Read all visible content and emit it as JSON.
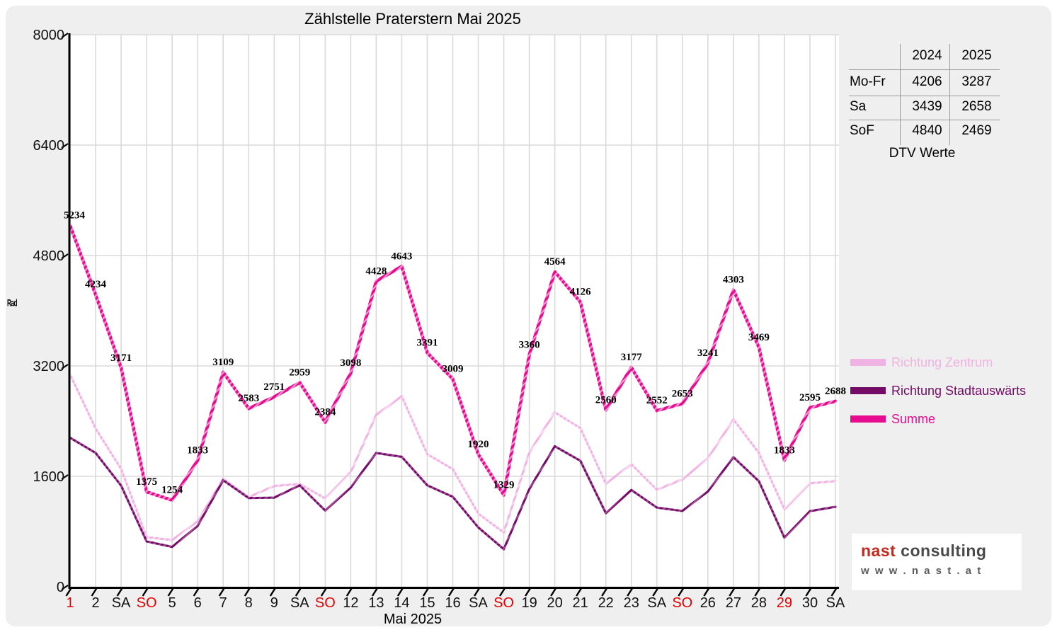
{
  "title": "Zählstelle Praterstern Mai 2025",
  "axes": {
    "y_title": "Rad",
    "x_title": "Mai 2025",
    "y_ticks": [
      0,
      1600,
      3200,
      4800,
      6400,
      8000
    ],
    "tick_color": "#111111",
    "weekend_holiday_color": "#e80000",
    "grid_color": "#dadada"
  },
  "table": {
    "col_headers": [
      "2024",
      "2025"
    ],
    "rows": [
      {
        "label": "Mo-Fr",
        "v2024": "4206",
        "v2025": "3287"
      },
      {
        "label": "Sa",
        "v2024": "3439",
        "v2025": "2658"
      },
      {
        "label": "SoF",
        "v2024": "4840",
        "v2025": "2469"
      }
    ],
    "caption": "DTV Werte"
  },
  "legend": {
    "items": [
      {
        "label": "Richtung Zentrum",
        "color": "#f0b2e2"
      },
      {
        "label": "Richtung Stadtauswärts",
        "color": "#740b66"
      },
      {
        "label": "Summe",
        "color": "#e60b8f"
      }
    ]
  },
  "logo": {
    "brand_red": "nast",
    "brand_rest": " consulting",
    "url_text": "w w w . n a s t . a t"
  },
  "chart_data": {
    "type": "line",
    "title": "Zählstelle Praterstern Mai 2025",
    "xlabel": "Mai 2025",
    "ylabel": "Rad",
    "ylim": [
      0,
      8000
    ],
    "grid": true,
    "legend_position": "right",
    "categories": [
      "1",
      "2",
      "SA",
      "SO",
      "5",
      "6",
      "7",
      "8",
      "9",
      "SA",
      "SO",
      "12",
      "13",
      "14",
      "15",
      "16",
      "SA",
      "SO",
      "19",
      "20",
      "21",
      "22",
      "23",
      "SA",
      "SO",
      "26",
      "27",
      "28",
      "29",
      "30",
      "SA"
    ],
    "red_category_indices": [
      0,
      3,
      10,
      17,
      24,
      28
    ],
    "series": [
      {
        "name": "Richtung Zentrum",
        "color": "#f0b2e2",
        "stripe": "#f8daf1",
        "width": 3.2,
        "estimated": true,
        "values": [
          3075,
          2294,
          1706,
          718,
          677,
          951,
          1565,
          1298,
          1460,
          1489,
          1280,
          1660,
          2490,
          2760,
          1921,
          1705,
          1060,
          785,
          1945,
          2528,
          2300,
          1494,
          1775,
          1405,
          1555,
          1860,
          2425,
          1940,
          1122,
          1500,
          1530
        ]
      },
      {
        "name": "Richtung Stadtauswärts",
        "color": "#740b66",
        "stripe": "#a04b96",
        "width": 3.2,
        "estimated": true,
        "values": [
          2159,
          1940,
          1465,
          657,
          577,
          882,
          1544,
          1285,
          1291,
          1470,
          1104,
          1438,
          1938,
          1883,
          1470,
          1304,
          860,
          544,
          1415,
          2036,
          1826,
          1066,
          1402,
          1147,
          1098,
          1381,
          1878,
          1529,
          711,
          1095,
          1158
        ]
      },
      {
        "name": "Summe",
        "color": "#e60b8f",
        "stripe": "#f693d0",
        "width": 4.6,
        "labeled": true,
        "values": [
          5234,
          4234,
          3171,
          1375,
          1254,
          1833,
          3109,
          2583,
          2751,
          2959,
          2384,
          3098,
          4428,
          4643,
          3391,
          3009,
          1920,
          1329,
          3360,
          4564,
          4126,
          2560,
          3177,
          2552,
          2653,
          3241,
          4303,
          3469,
          1833,
          2595,
          2688
        ]
      }
    ]
  }
}
